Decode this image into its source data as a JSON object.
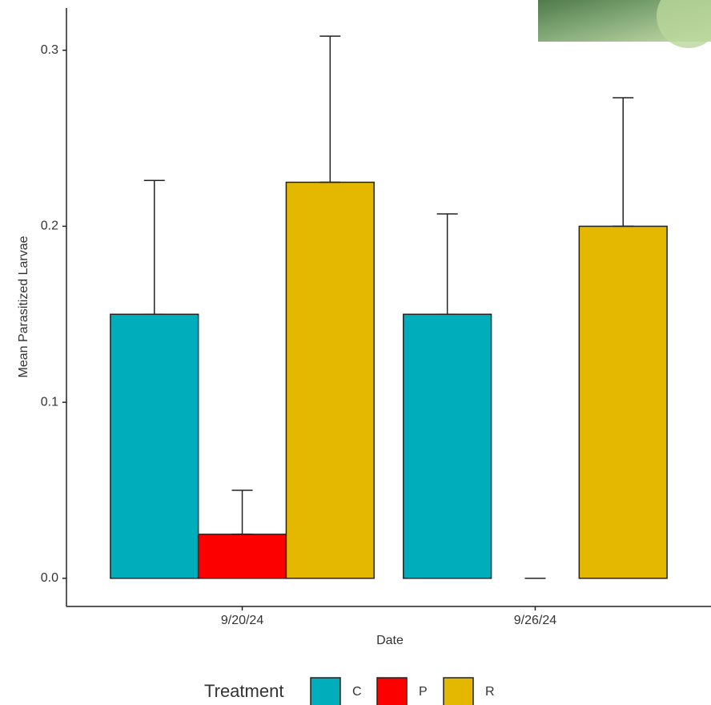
{
  "chart_data": {
    "type": "bar",
    "x_label": "Date",
    "y_label": "Mean Parasitized Larvae",
    "categories": [
      "9/20/24",
      "9/26/24"
    ],
    "series": [
      {
        "name": "C",
        "color": "#00adbb",
        "values": [
          0.15,
          0.15
        ],
        "errors": [
          0.076,
          0.057
        ]
      },
      {
        "name": "P",
        "color": "#fc0000",
        "values": [
          0.025,
          0
        ],
        "errors": [
          0.025,
          0
        ]
      },
      {
        "name": "R",
        "color": "#e5b800",
        "values": [
          0.225,
          0.2
        ],
        "errors": [
          0.083,
          0.073
        ]
      }
    ],
    "legend_title": "Treatment",
    "legend_position": "bottom",
    "ylim": [
      -0.016,
      0.324
    ],
    "yticks": [
      {
        "value": 0,
        "label": "0.0"
      },
      0.1,
      0.2,
      0.3
    ],
    "grid": false
  }
}
